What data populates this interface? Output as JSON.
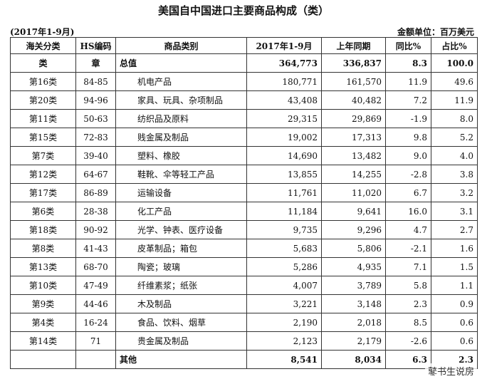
{
  "header": {
    "title": "美国自中国进口主要商品构成（类）",
    "period": "(2017年1-9月)",
    "unit": "金额单位：百万美元"
  },
  "table": {
    "columns": [
      "海关分类",
      "HS编码",
      "商品类别",
      "2017年1-9月",
      "上年同期",
      "同比%",
      "占比%"
    ],
    "rows": [
      [
        "类",
        "章",
        "总值",
        "364,773",
        "336,837",
        "8.3",
        "100.0"
      ],
      [
        "第16类",
        "84-85",
        "机电产品",
        "180,771",
        "161,570",
        "11.9",
        "49.6"
      ],
      [
        "第20类",
        "94-96",
        "家具、玩具、杂项制品",
        "43,408",
        "40,482",
        "7.2",
        "11.9"
      ],
      [
        "第11类",
        "50-63",
        "纺织品及原料",
        "29,315",
        "29,869",
        "-1.9",
        "8.0"
      ],
      [
        "第15类",
        "72-83",
        "贱金属及制品",
        "19,002",
        "17,313",
        "9.8",
        "5.2"
      ],
      [
        "第7类",
        "39-40",
        "塑料、橡胶",
        "14,690",
        "13,482",
        "9.0",
        "4.0"
      ],
      [
        "第12类",
        "64-67",
        "鞋靴、伞等轻工产品",
        "13,855",
        "14,255",
        "-2.8",
        "3.8"
      ],
      [
        "第17类",
        "86-89",
        "运输设备",
        "11,761",
        "11,020",
        "6.7",
        "3.2"
      ],
      [
        "第6类",
        "28-38",
        "化工产品",
        "11,184",
        "9,641",
        "16.0",
        "3.1"
      ],
      [
        "第18类",
        "90-92",
        "光学、钟表、医疗设备",
        "9,735",
        "9,296",
        "4.7",
        "2.7"
      ],
      [
        "第8类",
        "41-43",
        "皮革制品；箱包",
        "5,683",
        "5,806",
        "-2.1",
        "1.6"
      ],
      [
        "第13类",
        "68-70",
        "陶瓷；玻璃",
        "5,286",
        "4,935",
        "7.1",
        "1.5"
      ],
      [
        "第10类",
        "47-49",
        "纤维素浆；纸张",
        "4,007",
        "3,789",
        "5.8",
        "1.1"
      ],
      [
        "第9类",
        "44-46",
        "木及制品",
        "3,221",
        "3,148",
        "2.3",
        "0.9"
      ],
      [
        "第4类",
        "16-24",
        "食品、饮料、烟草",
        "2,190",
        "2,018",
        "8.5",
        "0.6"
      ],
      [
        "第14类",
        "71",
        "贵金属及制品",
        "2,123",
        "2,179",
        "-2.6",
        "0.6"
      ],
      [
        null,
        null,
        "其他",
        "8,541",
        "8,034",
        "6.3",
        "2.3"
      ]
    ]
  },
  "watermark": "鼕书生说房"
}
